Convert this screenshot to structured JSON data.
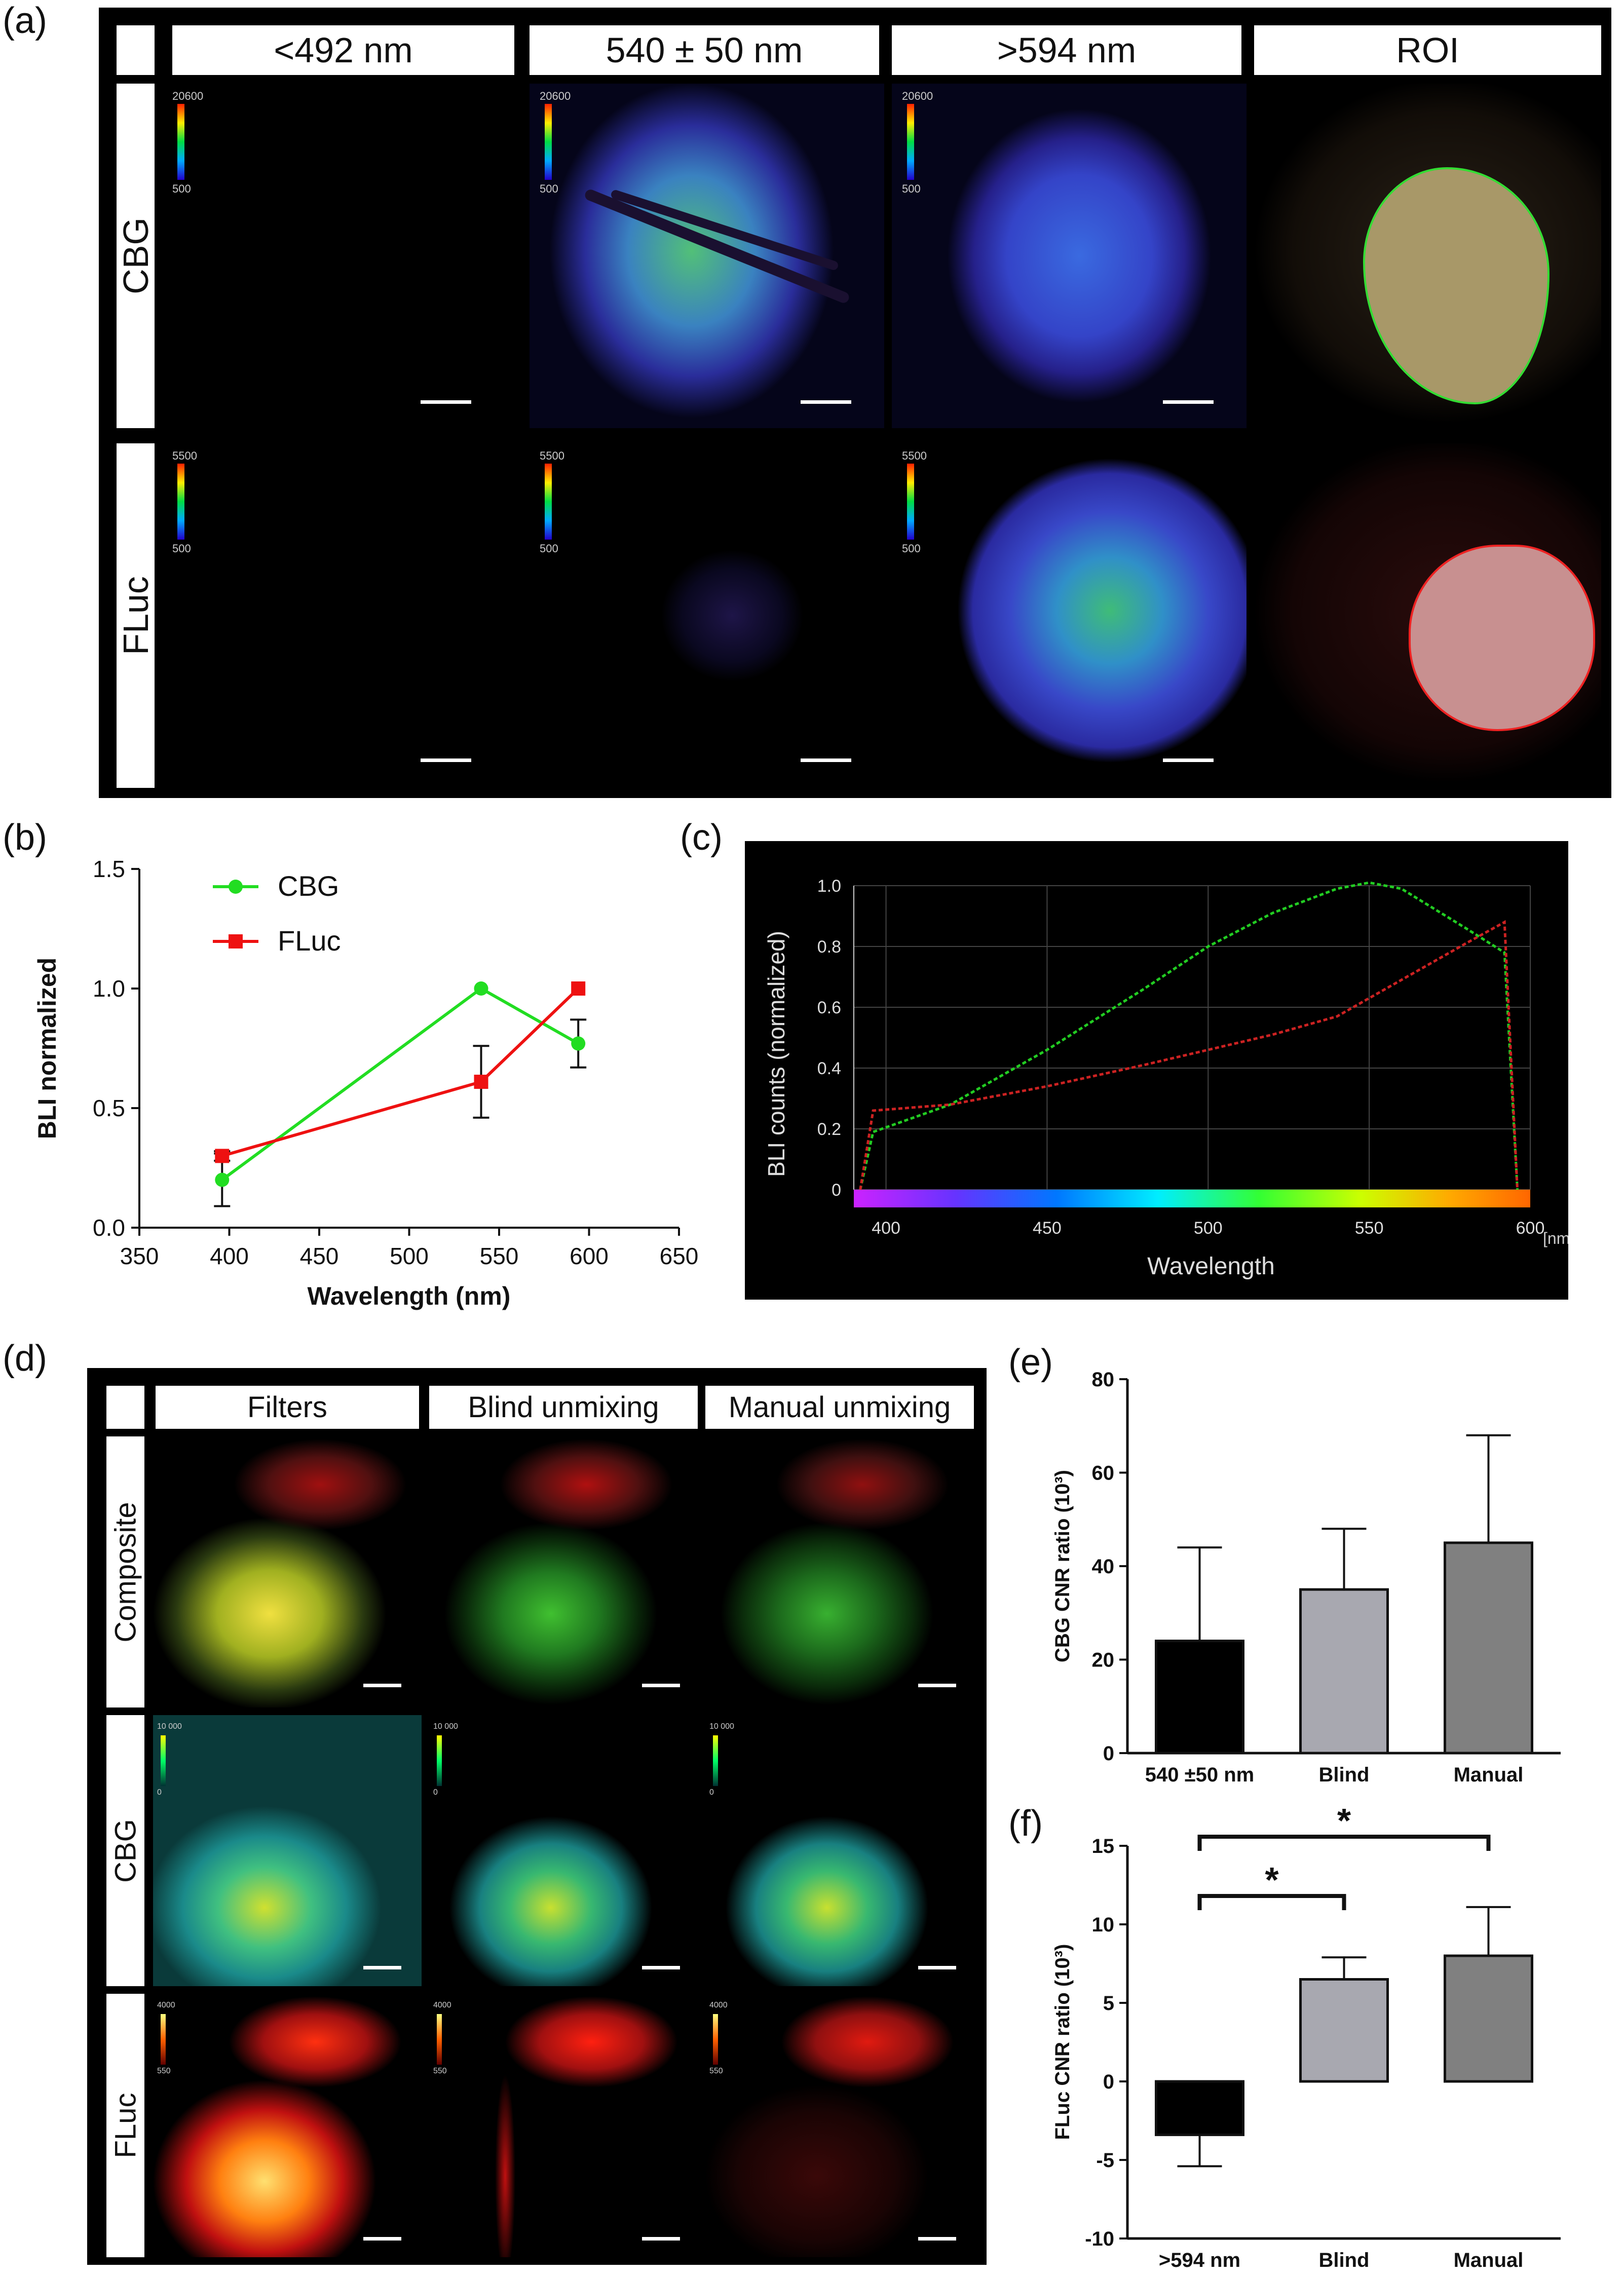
{
  "panel_labels": {
    "a": "(a)",
    "b": "(b)",
    "c": "(c)",
    "d": "(d)",
    "e": "(e)",
    "f": "(f)"
  },
  "panel_a": {
    "columns": [
      "<492 nm",
      "540 ± 50 nm",
      ">594 nm",
      "ROI"
    ],
    "rows": [
      "CBG",
      "FLuc"
    ],
    "cbg_scale": {
      "max": "20600",
      "min": "500"
    },
    "fluc_scale": {
      "max": "5500",
      "min": "500"
    }
  },
  "panel_d": {
    "columns": [
      "Filters",
      "Blind unmixing",
      "Manual unmixing"
    ],
    "rows": [
      "Composite",
      "CBG",
      "FLuc"
    ],
    "cbg_scale": {
      "max": "10 000",
      "min": "0"
    },
    "fluc_scale": {
      "max": "4000",
      "min": "550"
    }
  },
  "chart_data": [
    {
      "id": "b",
      "type": "line",
      "xlabel": "Wavelength (nm)",
      "ylabel": "BLI normalized",
      "xlim": [
        350,
        650
      ],
      "ylim": [
        0,
        1.5
      ],
      "xticks": [
        "350",
        "400",
        "450",
        "500",
        "550",
        "600",
        "650"
      ],
      "yticks": [
        "0.0",
        "0.5",
        "1.0",
        "1.5"
      ],
      "series": [
        {
          "name": "CBG",
          "color": "#22dd22",
          "marker": "circle",
          "x": [
            396,
            540,
            594
          ],
          "y": [
            0.2,
            1.0,
            0.77
          ],
          "err": [
            0.11,
            0,
            0.1
          ]
        },
        {
          "name": "FLuc",
          "color": "#ee1111",
          "marker": "square",
          "x": [
            396,
            540,
            594
          ],
          "y": [
            0.3,
            0.61,
            1.0
          ],
          "err": [
            0.02,
            0.15,
            0
          ]
        }
      ]
    },
    {
      "id": "c",
      "type": "line",
      "xlabel": "Wavelength",
      "ylabel": "BLI counts (normalized)",
      "unit": "[nm]",
      "xlim": [
        390,
        600
      ],
      "ylim": [
        0,
        1.0
      ],
      "xticks": [
        "400",
        "450",
        "500",
        "550",
        "600"
      ],
      "yticks": [
        "0",
        "0.2",
        "0.4",
        "0.6",
        "0.8",
        "1.0"
      ],
      "series": [
        {
          "name": "CBG",
          "color": "#22cc22",
          "x": [
            392,
            396,
            420,
            450,
            480,
            500,
            520,
            540,
            550,
            560,
            580,
            592,
            596
          ],
          "y": [
            0,
            0.19,
            0.28,
            0.46,
            0.66,
            0.8,
            0.91,
            0.99,
            1.01,
            0.99,
            0.86,
            0.78,
            0
          ]
        },
        {
          "name": "FLuc",
          "color": "#cc2222",
          "x": [
            392,
            396,
            420,
            450,
            480,
            500,
            520,
            540,
            580,
            592,
            596
          ],
          "y": [
            0,
            0.26,
            0.28,
            0.34,
            0.41,
            0.46,
            0.51,
            0.57,
            0.81,
            0.88,
            0
          ]
        }
      ]
    },
    {
      "id": "e",
      "type": "bar",
      "ylabel": "CBG CNR ratio (10³)",
      "ylim": [
        0,
        80
      ],
      "yticks": [
        "0",
        "20",
        "40",
        "60",
        "80"
      ],
      "categories": [
        "540 ±50 nm",
        "Blind",
        "Manual"
      ],
      "values": [
        24,
        35,
        45
      ],
      "errors": [
        20,
        13,
        23
      ],
      "colors": [
        "#000000",
        "#a8a8b0",
        "#808080"
      ]
    },
    {
      "id": "f",
      "type": "bar",
      "ylabel": "FLuc CNR ratio (10³)",
      "ylim": [
        -10,
        15
      ],
      "yticks": [
        "-10",
        "-5",
        "0",
        "5",
        "10",
        "15"
      ],
      "categories": [
        ">594 nm",
        "Blind",
        "Manual"
      ],
      "values": [
        -3.4,
        6.5,
        8.0
      ],
      "errors": [
        2,
        1.4,
        3.1
      ],
      "colors": [
        "#000000",
        "#a8a8b0",
        "#808080"
      ],
      "significance": [
        {
          "from": 0,
          "to": 1,
          "label": "*"
        },
        {
          "from": 0,
          "to": 2,
          "label": "*"
        }
      ]
    }
  ]
}
